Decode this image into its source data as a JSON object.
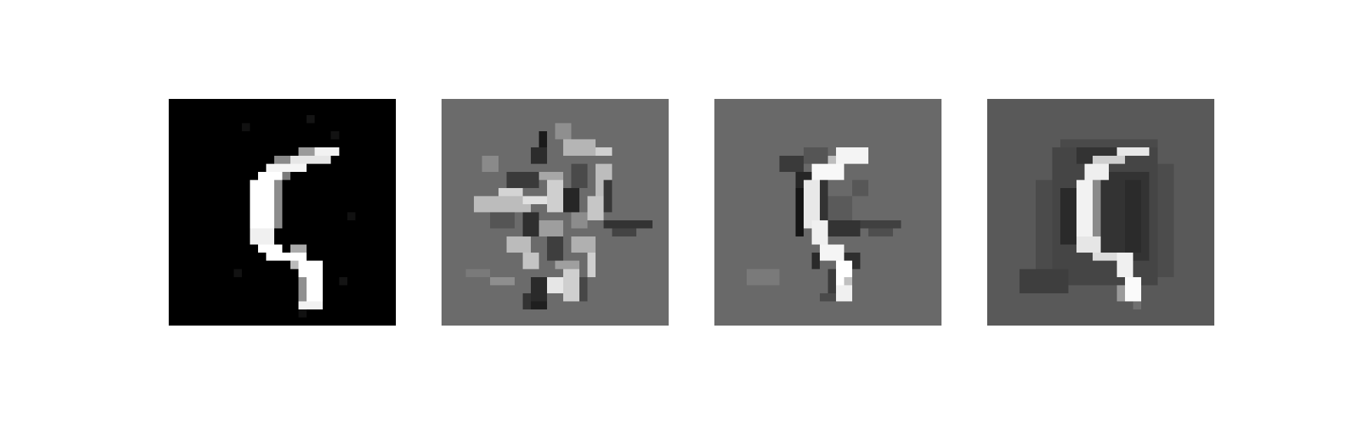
{
  "figure": {
    "panels": [
      {
        "role": "original-input",
        "background": "#000000"
      },
      {
        "role": "reconstruction-1",
        "background": "#6b6b6b"
      },
      {
        "role": "reconstruction-2",
        "background": "#696969"
      },
      {
        "role": "reconstruction-3",
        "background": "#595959"
      }
    ]
  }
}
